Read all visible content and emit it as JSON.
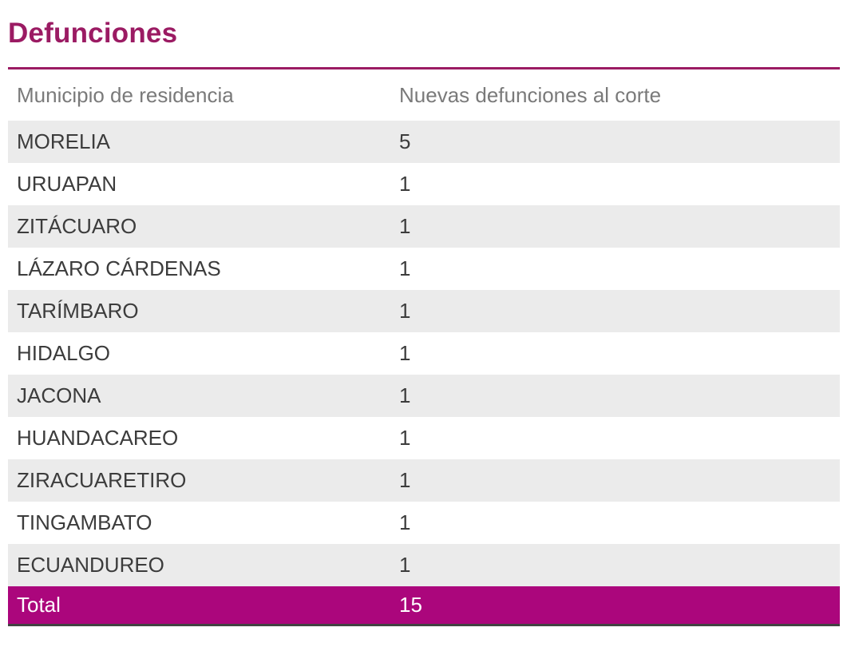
{
  "title": "Defunciones",
  "colors": {
    "accent": "#9b1b63",
    "total_row_bg": "#ab067c",
    "row_alt_bg": "#ebebeb",
    "header_text": "#7a7a7a",
    "cell_text": "#3c3c3c",
    "total_text": "#ffffff",
    "bottom_border": "#424242"
  },
  "chart_data": {
    "type": "table",
    "title": "Defunciones",
    "columns": [
      "Municipio de residencia",
      "Nuevas defunciones al corte"
    ],
    "rows": [
      {
        "municipio": "MORELIA",
        "nuevas_defunciones": "5"
      },
      {
        "municipio": "URUAPAN",
        "nuevas_defunciones": "1"
      },
      {
        "municipio": "ZITÁCUARO",
        "nuevas_defunciones": "1"
      },
      {
        "municipio": "LÁZARO CÁRDENAS",
        "nuevas_defunciones": "1"
      },
      {
        "municipio": "TARÍMBARO",
        "nuevas_defunciones": "1"
      },
      {
        "municipio": "HIDALGO",
        "nuevas_defunciones": "1"
      },
      {
        "municipio": "JACONA",
        "nuevas_defunciones": "1"
      },
      {
        "municipio": "HUANDACAREO",
        "nuevas_defunciones": "1"
      },
      {
        "municipio": "ZIRACUARETIRO",
        "nuevas_defunciones": "1"
      },
      {
        "municipio": "TINGAMBATO",
        "nuevas_defunciones": "1"
      },
      {
        "municipio": "ECUANDUREO",
        "nuevas_defunciones": "1"
      }
    ],
    "total": {
      "label": "Total",
      "value": "15"
    },
    "values_numeric": [
      5,
      1,
      1,
      1,
      1,
      1,
      1,
      1,
      1,
      1,
      1
    ],
    "total_numeric": 15
  }
}
